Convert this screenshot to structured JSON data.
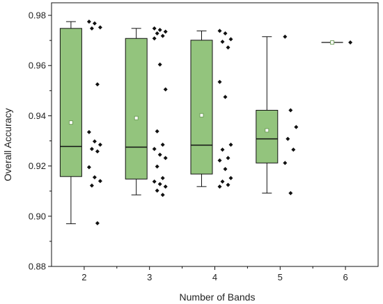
{
  "chart_data": {
    "type": "box",
    "title": "",
    "xlabel": "Number of Bands",
    "ylabel": "Overall Accuracy",
    "ylim": [
      0.88,
      0.985
    ],
    "xlim": [
      1.5,
      6.5
    ],
    "yticks": [
      0.88,
      0.9,
      0.92,
      0.94,
      0.96,
      0.98
    ],
    "ytick_labels": [
      "0.88",
      "0.90",
      "0.92",
      "0.94",
      "0.96",
      "0.98"
    ],
    "xticks": [
      2,
      3,
      4,
      5,
      6
    ],
    "xtick_labels": [
      "2",
      "3",
      "4",
      "5",
      "6"
    ],
    "grid": false,
    "legend": "none",
    "colors": {
      "box_fill": "#93c47d",
      "box_stroke": "#111111",
      "points": "#111111",
      "mean_marker": "#6a9a55"
    },
    "groups": [
      {
        "x": 2,
        "min": 0.897,
        "q1": 0.9158,
        "median": 0.9278,
        "q3": 0.9748,
        "max": 0.9775,
        "mean": 0.9373,
        "points": [
          0.9775,
          0.9768,
          0.9752,
          0.9748,
          0.9525,
          0.9335,
          0.9298,
          0.9285,
          0.9268,
          0.9258,
          0.9195,
          0.9155,
          0.914,
          0.9122,
          0.8972
        ]
      },
      {
        "x": 3,
        "min": 0.9085,
        "q1": 0.9148,
        "median": 0.9275,
        "q3": 0.9708,
        "max": 0.9748,
        "mean": 0.9391,
        "points": [
          0.9748,
          0.9742,
          0.9735,
          0.9728,
          0.9718,
          0.9708,
          0.9604,
          0.9505,
          0.9338,
          0.9285,
          0.9268,
          0.9245,
          0.9232,
          0.9198,
          0.9152,
          0.9138,
          0.9128,
          0.9118,
          0.9102,
          0.9085
        ]
      },
      {
        "x": 4,
        "min": 0.9118,
        "q1": 0.9168,
        "median": 0.9283,
        "q3": 0.9701,
        "max": 0.9738,
        "mean": 0.9402,
        "points": [
          0.9738,
          0.9728,
          0.9705,
          0.9695,
          0.9672,
          0.9535,
          0.9475,
          0.9285,
          0.9265,
          0.9232,
          0.9222,
          0.9188,
          0.9152,
          0.9138,
          0.9125,
          0.9118
        ]
      },
      {
        "x": 5,
        "min": 0.9092,
        "q1": 0.9212,
        "median": 0.9308,
        "q3": 0.9422,
        "max": 0.9715,
        "mean": 0.9342,
        "points": [
          0.9715,
          0.9422,
          0.9355,
          0.9308,
          0.9265,
          0.9212,
          0.9092
        ]
      },
      {
        "x": 6,
        "min": 0.9692,
        "q1": 0.9692,
        "median": 0.9692,
        "q3": 0.9692,
        "max": 0.9692,
        "mean": 0.9692,
        "points": [
          0.9692
        ]
      }
    ]
  }
}
